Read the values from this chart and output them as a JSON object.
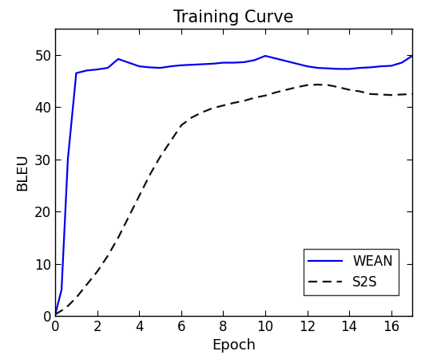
{
  "title": "Training Curve",
  "xlabel": "Epoch",
  "ylabel": "BLEU",
  "xlim": [
    0,
    17
  ],
  "ylim": [
    0,
    55
  ],
  "xticks": [
    0,
    2,
    4,
    6,
    8,
    10,
    12,
    14,
    16
  ],
  "yticks": [
    0,
    10,
    20,
    30,
    40,
    50
  ],
  "wean_x": [
    0,
    0.3,
    0.6,
    1.0,
    1.5,
    2.0,
    2.5,
    3.0,
    3.5,
    4.0,
    4.5,
    5.0,
    5.5,
    6.0,
    6.5,
    7.0,
    7.5,
    8.0,
    8.5,
    9.0,
    9.5,
    10.0,
    10.5,
    11.0,
    11.5,
    12.0,
    12.5,
    13.0,
    13.5,
    14.0,
    14.5,
    15.0,
    15.5,
    16.0,
    16.5,
    17.0
  ],
  "wean_y": [
    0.3,
    5.0,
    30.0,
    46.5,
    47.0,
    47.2,
    47.5,
    49.2,
    48.5,
    47.8,
    47.6,
    47.5,
    47.8,
    48.0,
    48.1,
    48.2,
    48.3,
    48.5,
    48.5,
    48.6,
    49.0,
    49.8,
    49.3,
    48.8,
    48.3,
    47.8,
    47.5,
    47.4,
    47.3,
    47.3,
    47.5,
    47.6,
    47.8,
    47.9,
    48.5,
    49.8
  ],
  "s2s_x": [
    0,
    0.5,
    1.0,
    1.5,
    2.0,
    2.5,
    3.0,
    3.5,
    4.0,
    4.5,
    5.0,
    5.5,
    6.0,
    6.5,
    7.0,
    7.5,
    8.0,
    8.5,
    9.0,
    9.5,
    10.0,
    10.5,
    11.0,
    11.5,
    12.0,
    12.5,
    13.0,
    13.5,
    14.0,
    14.5,
    15.0,
    15.5,
    16.0,
    16.5,
    17.0
  ],
  "s2s_y": [
    0.3,
    1.5,
    3.5,
    6.0,
    8.5,
    11.5,
    15.0,
    19.0,
    23.0,
    27.0,
    30.5,
    33.5,
    36.5,
    38.0,
    39.0,
    39.8,
    40.3,
    40.8,
    41.2,
    41.8,
    42.2,
    42.8,
    43.3,
    43.8,
    44.2,
    44.3,
    44.2,
    43.8,
    43.3,
    43.0,
    42.5,
    42.4,
    42.3,
    42.4,
    42.5
  ],
  "wean_color": "#0000ee",
  "s2s_color": "#111111",
  "wean_label": "WEAN",
  "s2s_label": "S2S",
  "title_fontsize": 15,
  "label_fontsize": 13,
  "tick_fontsize": 12,
  "legend_fontsize": 12,
  "linewidth": 1.6,
  "background_color": "#ffffff"
}
